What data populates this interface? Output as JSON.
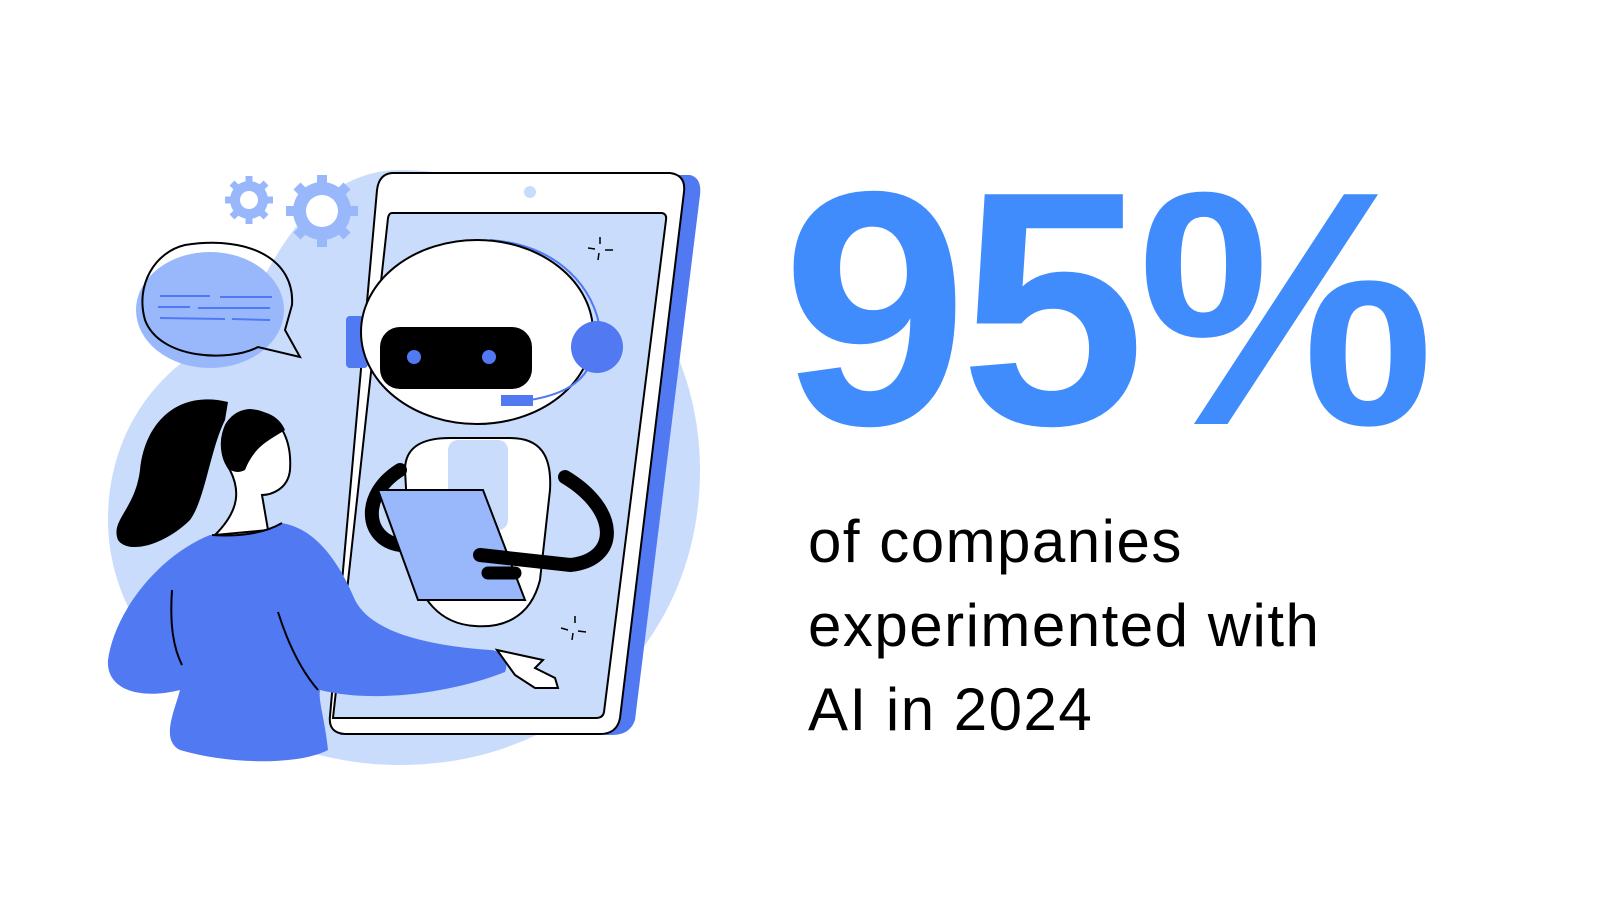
{
  "stat": {
    "value": "95%",
    "caption_lines": [
      "of companies",
      "experimented with",
      "AI in 2024"
    ]
  },
  "colors": {
    "accent": "#418cfc",
    "light_blue": "#cadcfc",
    "mid_blue": "#99b8fc",
    "dark_blue": "#5179f2",
    "text": "#000000"
  },
  "illustration": {
    "icons": [
      "gear-icon",
      "speech-bubble-icon",
      "robot-icon",
      "tablet-icon",
      "woman-figure"
    ]
  }
}
